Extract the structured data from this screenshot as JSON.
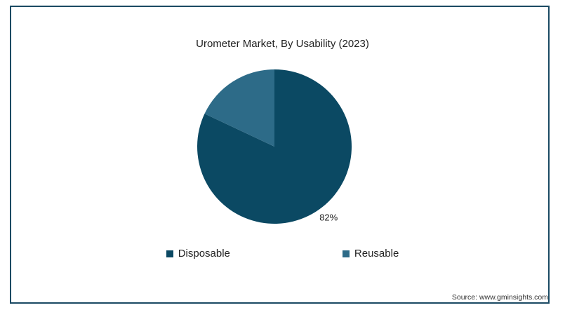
{
  "chart_data": {
    "type": "pie",
    "title": "Urometer Market, By Usability (2023)",
    "slices": [
      {
        "label": "Disposable",
        "value": 82,
        "display": "82%",
        "color": "#0b4963"
      },
      {
        "label": "Reusable",
        "value": 18,
        "display": "",
        "color": "#2d6b88"
      }
    ],
    "legend_position": "bottom"
  },
  "source": "Source: www.gminsights.com"
}
